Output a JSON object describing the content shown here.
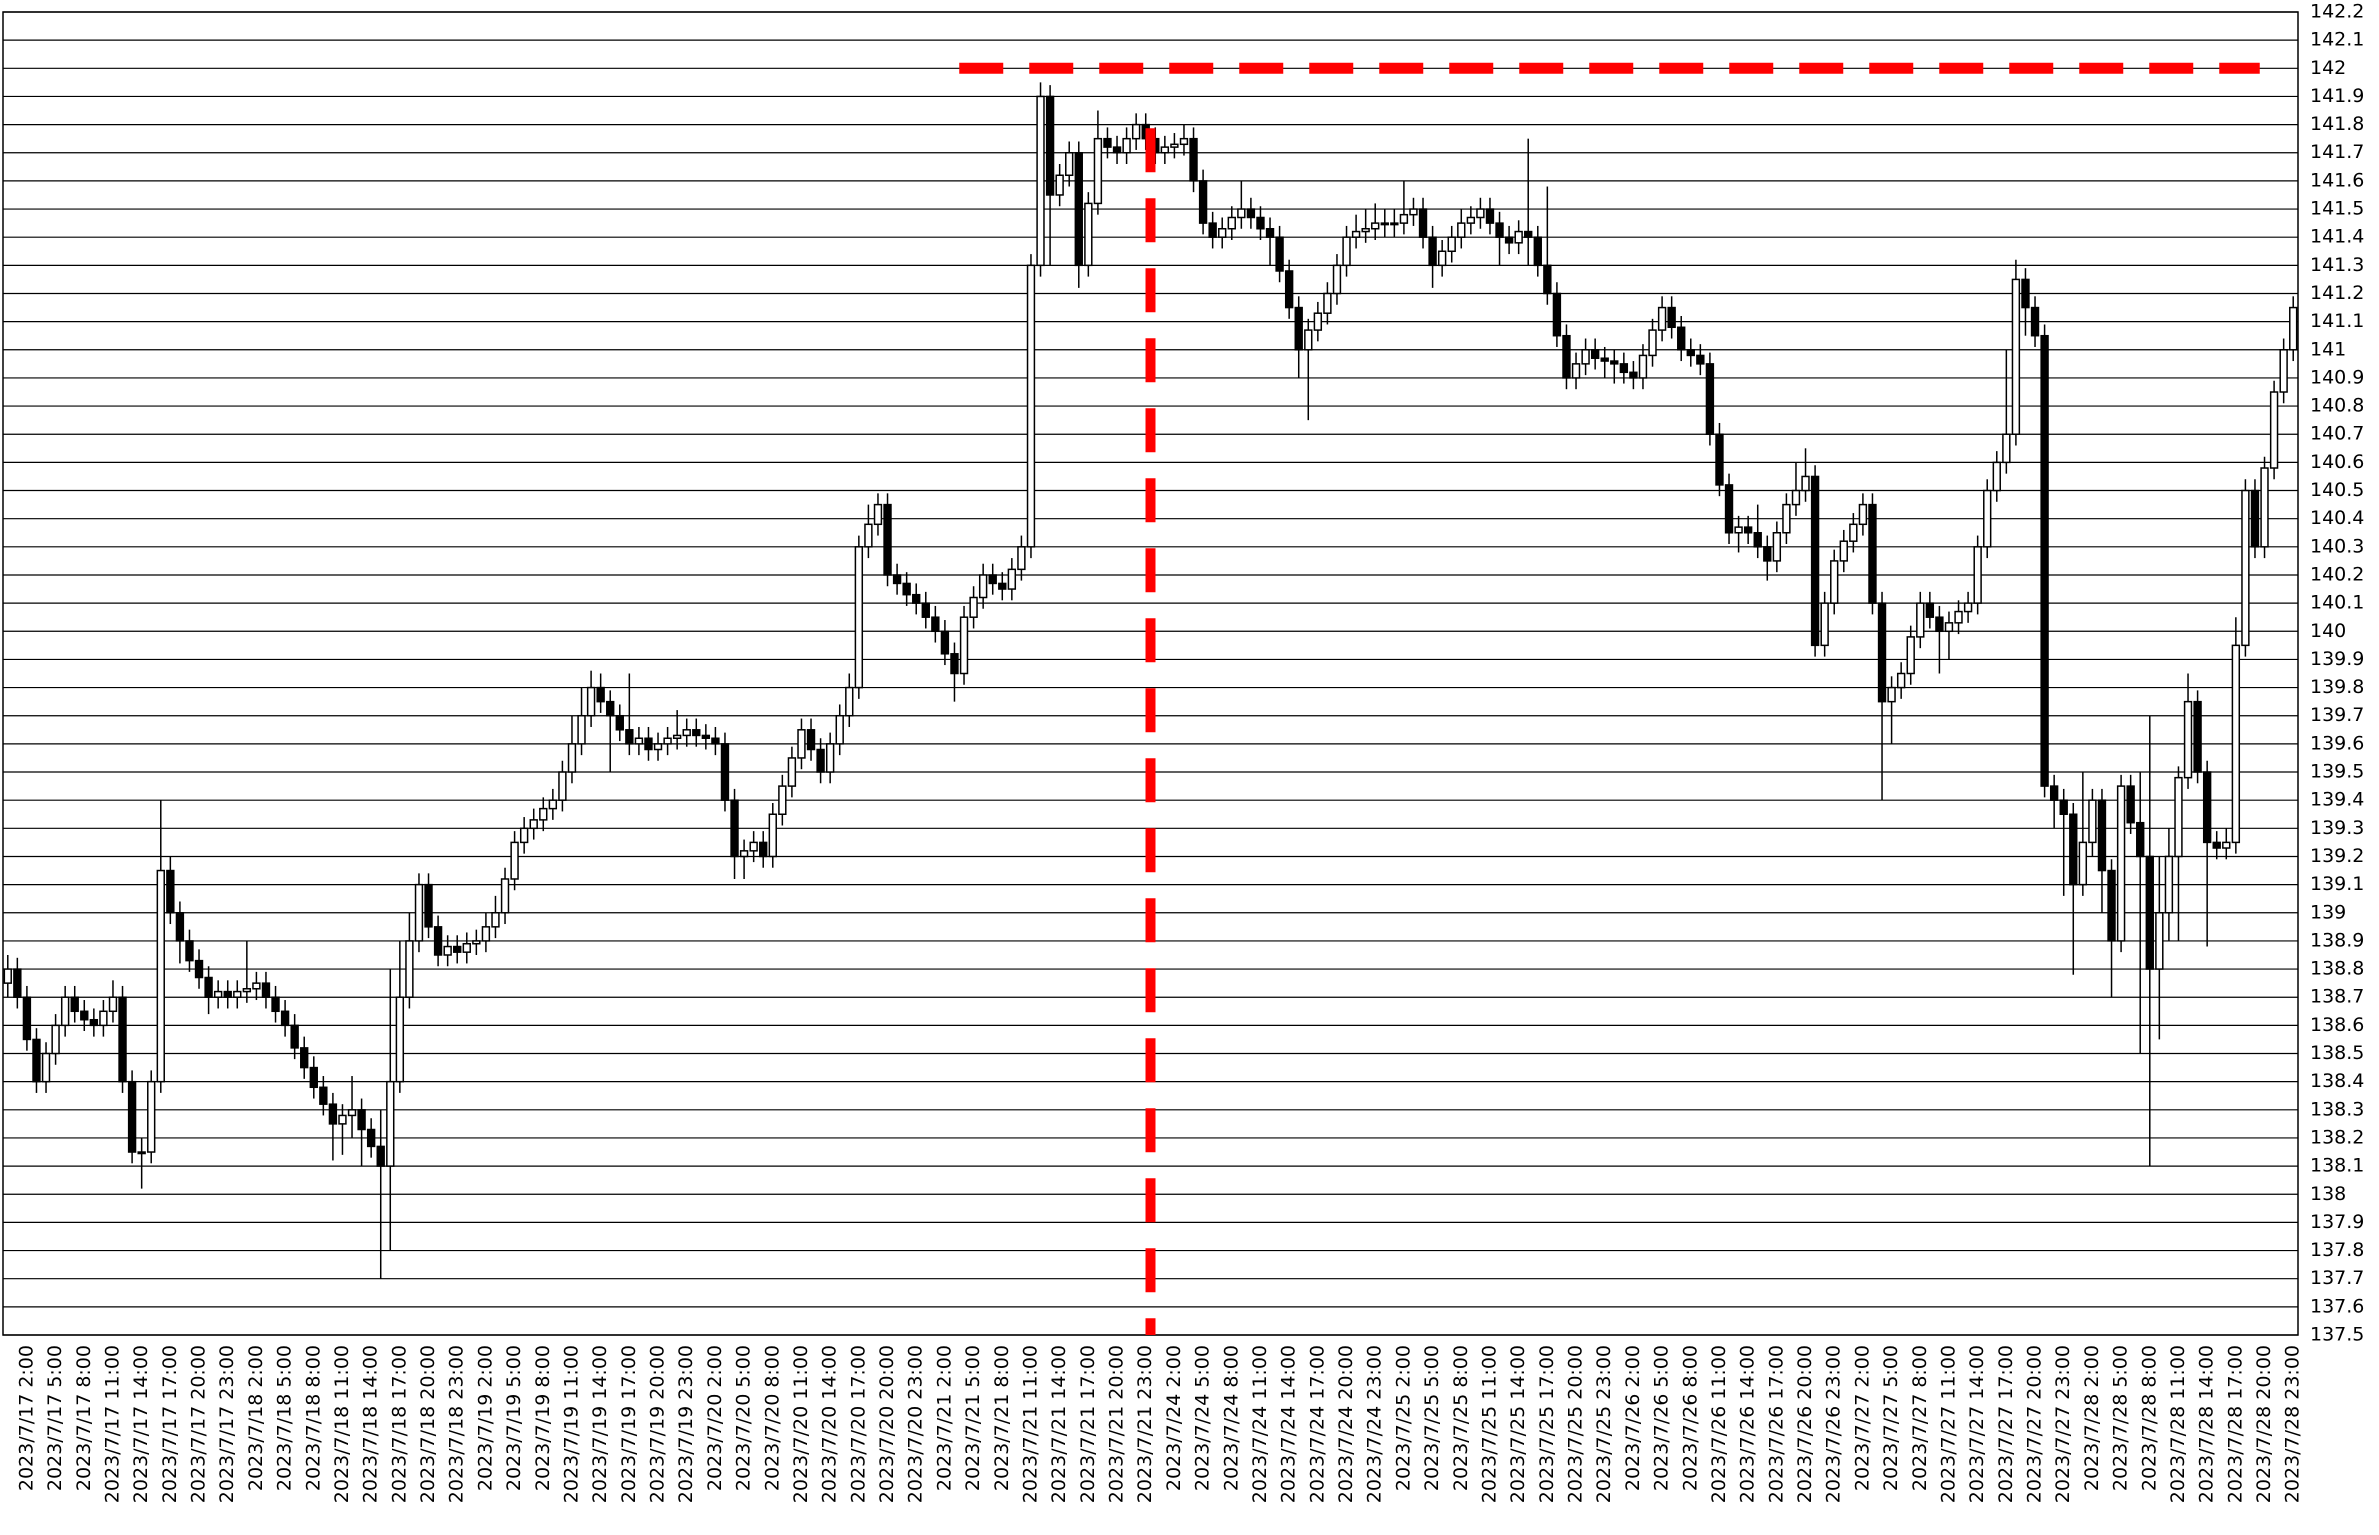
{
  "chart_data": {
    "type": "candlestick",
    "categories": [
      null,
      null,
      "2023/7/17 2:00",
      null,
      null,
      "2023/7/17 5:00",
      null,
      null,
      "2023/7/17 8:00",
      null,
      null,
      "2023/7/17 11:00",
      null,
      null,
      "2023/7/17 14:00",
      null,
      null,
      "2023/7/17 17:00",
      null,
      null,
      "2023/7/17 20:00",
      null,
      null,
      "2023/7/17 23:00",
      null,
      null,
      "2023/7/18 2:00",
      null,
      null,
      "2023/7/18 5:00",
      null,
      null,
      "2023/7/18 8:00",
      null,
      null,
      "2023/7/18 11:00",
      null,
      null,
      "2023/7/18 14:00",
      null,
      null,
      "2023/7/18 17:00",
      null,
      null,
      "2023/7/18 20:00",
      null,
      null,
      "2023/7/18 23:00",
      null,
      null,
      "2023/7/19 2:00",
      null,
      null,
      "2023/7/19 5:00",
      null,
      null,
      "2023/7/19 8:00",
      null,
      null,
      "2023/7/19 11:00",
      null,
      null,
      "2023/7/19 14:00",
      null,
      null,
      "2023/7/19 17:00",
      null,
      null,
      "2023/7/19 20:00",
      null,
      null,
      "2023/7/19 23:00",
      null,
      null,
      "2023/7/20 2:00",
      null,
      null,
      "2023/7/20 5:00",
      null,
      null,
      "2023/7/20 8:00",
      null,
      null,
      "2023/7/20 11:00",
      null,
      null,
      "2023/7/20 14:00",
      null,
      null,
      "2023/7/20 17:00",
      null,
      null,
      "2023/7/20 20:00",
      null,
      null,
      "2023/7/20 23:00",
      null,
      null,
      "2023/7/21 2:00",
      null,
      null,
      "2023/7/21 5:00",
      null,
      null,
      "2023/7/21 8:00",
      null,
      null,
      "2023/7/21 11:00",
      null,
      null,
      "2023/7/21 14:00",
      null,
      null,
      "2023/7/21 17:00",
      null,
      null,
      "2023/7/21 20:00",
      null,
      null,
      "2023/7/21 23:00",
      null,
      null,
      "2023/7/24 2:00",
      null,
      null,
      "2023/7/24 5:00",
      null,
      null,
      "2023/7/24 8:00",
      null,
      null,
      "2023/7/24 11:00",
      null,
      null,
      "2023/7/24 14:00",
      null,
      null,
      "2023/7/24 17:00",
      null,
      null,
      "2023/7/24 20:00",
      null,
      null,
      "2023/7/24 23:00",
      null,
      null,
      "2023/7/25 2:00",
      null,
      null,
      "2023/7/25 5:00",
      null,
      null,
      "2023/7/25 8:00",
      null,
      null,
      "2023/7/25 11:00",
      null,
      null,
      "2023/7/25 14:00",
      null,
      null,
      "2023/7/25 17:00",
      null,
      null,
      "2023/7/25 20:00",
      null,
      null,
      "2023/7/25 23:00",
      null,
      null,
      "2023/7/26 2:00",
      null,
      null,
      "2023/7/26 5:00",
      null,
      null,
      "2023/7/26 8:00",
      null,
      null,
      "2023/7/26 11:00",
      null,
      null,
      "2023/7/26 14:00",
      null,
      null,
      "2023/7/26 17:00",
      null,
      null,
      "2023/7/26 20:00",
      null,
      null,
      "2023/7/26 23:00",
      null,
      null,
      "2023/7/27 2:00",
      null,
      null,
      "2023/7/27 5:00",
      null,
      null,
      "2023/7/27 8:00",
      null,
      null,
      "2023/7/27 11:00",
      null,
      null,
      "2023/7/27 14:00",
      null,
      null,
      "2023/7/27 17:00",
      null,
      null,
      "2023/7/27 20:00",
      null,
      null,
      "2023/7/27 23:00",
      null,
      null,
      "2023/7/28 2:00",
      null,
      null,
      "2023/7/28 5:00",
      null,
      null,
      "2023/7/28 8:00",
      null,
      null,
      "2023/7/28 11:00",
      null,
      null,
      "2023/7/28 14:00",
      null,
      null,
      "2023/7/28 17:00",
      null,
      null,
      "2023/7/28 20:00",
      null,
      null,
      "2023/7/28 23:00"
    ],
    "open": [
      138.75,
      138.8,
      138.7,
      138.55,
      138.4,
      138.5,
      138.6,
      138.7,
      138.65,
      138.62,
      138.6,
      138.65,
      138.7,
      138.4,
      138.15,
      138.15,
      138.4,
      139.15,
      139.0,
      138.9,
      138.83,
      138.77,
      138.7,
      138.72,
      138.7,
      138.72,
      138.73,
      138.75,
      138.7,
      138.65,
      138.6,
      138.52,
      138.45,
      138.38,
      138.32,
      138.25,
      138.28,
      138.3,
      138.23,
      138.17,
      138.1,
      138.4,
      138.7,
      138.9,
      139.1,
      138.95,
      138.85,
      138.88,
      138.86,
      138.89,
      138.9,
      138.95,
      139.0,
      139.12,
      139.25,
      139.3,
      139.33,
      139.37,
      139.4,
      139.5,
      139.6,
      139.7,
      139.8,
      139.75,
      139.7,
      139.65,
      139.6,
      139.62,
      139.58,
      139.6,
      139.62,
      139.63,
      139.65,
      139.63,
      139.62,
      139.6,
      139.4,
      139.2,
      139.22,
      139.25,
      139.2,
      139.35,
      139.45,
      139.55,
      139.65,
      139.58,
      139.5,
      139.6,
      139.7,
      139.8,
      140.3,
      140.38,
      140.45,
      140.2,
      140.17,
      140.13,
      140.1,
      140.05,
      140.0,
      139.92,
      139.85,
      140.05,
      140.12,
      140.2,
      140.17,
      140.15,
      140.22,
      140.3,
      141.3,
      141.9,
      141.55,
      141.62,
      141.7,
      141.3,
      141.52,
      141.75,
      141.72,
      141.7,
      141.75,
      141.8,
      141.75,
      141.7,
      141.72,
      141.73,
      141.75,
      141.6,
      141.45,
      141.4,
      141.43,
      141.47,
      141.5,
      141.47,
      141.43,
      141.4,
      141.28,
      141.15,
      141.0,
      141.07,
      141.13,
      141.2,
      141.3,
      141.4,
      141.42,
      141.43,
      141.45,
      141.45,
      141.45,
      141.48,
      141.5,
      141.4,
      141.3,
      141.35,
      141.4,
      141.45,
      141.47,
      141.5,
      141.45,
      141.4,
      141.38,
      141.42,
      141.4,
      141.3,
      141.2,
      141.05,
      140.9,
      140.95,
      141.0,
      140.97,
      140.96,
      140.95,
      140.92,
      140.9,
      140.98,
      141.07,
      141.15,
      141.08,
      141.0,
      140.98,
      140.95,
      140.7,
      140.52,
      140.35,
      140.37,
      140.35,
      140.3,
      140.25,
      140.35,
      140.45,
      140.5,
      140.55,
      139.95,
      140.1,
      140.25,
      140.32,
      140.38,
      140.45,
      140.1,
      139.75,
      139.8,
      139.85,
      139.98,
      140.1,
      140.05,
      140.0,
      140.03,
      140.07,
      140.1,
      140.3,
      140.5,
      140.6,
      140.7,
      141.25,
      141.15,
      141.05,
      139.45,
      139.4,
      139.35,
      139.1,
      139.25,
      139.4,
      139.15,
      138.9,
      139.45,
      139.32,
      139.2,
      138.8,
      139.0,
      139.2,
      139.48,
      139.75,
      139.5,
      139.25,
      139.23,
      139.25,
      139.95,
      140.5,
      140.3,
      140.58,
      140.85,
      141.0
    ],
    "high": [
      138.85,
      138.84,
      138.74,
      138.59,
      138.54,
      138.64,
      138.74,
      138.74,
      138.69,
      138.66,
      138.69,
      138.76,
      138.74,
      138.44,
      138.2,
      138.44,
      139.4,
      139.2,
      139.04,
      138.94,
      138.87,
      138.81,
      138.76,
      138.76,
      138.76,
      138.9,
      138.79,
      138.79,
      138.74,
      138.69,
      138.64,
      138.56,
      138.49,
      138.42,
      138.36,
      138.32,
      138.42,
      138.34,
      138.27,
      138.3,
      138.8,
      138.9,
      139.0,
      139.14,
      139.14,
      138.99,
      138.92,
      138.92,
      138.93,
      138.94,
      139.0,
      139.06,
      139.16,
      139.29,
      139.34,
      139.37,
      139.41,
      139.44,
      139.54,
      139.7,
      139.8,
      139.86,
      139.85,
      139.79,
      139.74,
      139.85,
      139.66,
      139.66,
      139.64,
      139.66,
      139.72,
      139.69,
      139.69,
      139.67,
      139.66,
      139.64,
      139.44,
      139.26,
      139.29,
      139.29,
      139.39,
      139.49,
      139.59,
      139.69,
      139.69,
      139.62,
      139.64,
      139.74,
      139.85,
      140.34,
      140.45,
      140.49,
      140.49,
      140.24,
      140.21,
      140.17,
      140.14,
      140.09,
      140.04,
      139.96,
      140.09,
      140.16,
      140.24,
      140.24,
      140.21,
      140.26,
      140.34,
      141.34,
      141.95,
      141.94,
      141.66,
      141.74,
      141.74,
      141.56,
      141.85,
      141.79,
      141.76,
      141.79,
      141.84,
      141.84,
      141.79,
      141.76,
      141.77,
      141.8,
      141.79,
      141.64,
      141.49,
      141.47,
      141.51,
      141.6,
      141.54,
      141.51,
      141.47,
      141.44,
      141.32,
      141.19,
      141.11,
      141.17,
      141.24,
      141.34,
      141.44,
      141.48,
      141.5,
      141.52,
      141.5,
      141.5,
      141.6,
      141.54,
      141.54,
      141.44,
      141.39,
      141.44,
      141.5,
      141.51,
      141.54,
      141.54,
      141.49,
      141.44,
      141.46,
      141.75,
      141.44,
      141.58,
      141.24,
      141.09,
      140.99,
      141.04,
      141.04,
      141.01,
      141.0,
      140.99,
      140.96,
      141.02,
      141.11,
      141.19,
      141.19,
      141.12,
      141.04,
      141.02,
      140.99,
      140.74,
      140.56,
      140.41,
      140.41,
      140.45,
      140.34,
      140.39,
      140.49,
      140.6,
      140.65,
      140.59,
      140.14,
      140.29,
      140.36,
      140.42,
      140.49,
      140.49,
      140.14,
      139.84,
      139.89,
      140.02,
      140.14,
      140.14,
      140.09,
      140.07,
      140.11,
      140.14,
      140.34,
      140.54,
      140.64,
      141.0,
      141.32,
      141.29,
      141.19,
      141.09,
      139.49,
      139.44,
      139.39,
      139.5,
      139.44,
      139.44,
      139.19,
      139.49,
      139.49,
      139.5,
      139.7,
      139.2,
      139.3,
      139.52,
      139.85,
      139.79,
      139.54,
      139.29,
      139.3,
      140.05,
      140.54,
      140.54,
      140.62,
      140.89,
      141.04,
      141.19
    ],
    "low": [
      138.7,
      138.66,
      138.51,
      138.36,
      138.36,
      138.46,
      138.56,
      138.61,
      138.58,
      138.56,
      138.56,
      138.61,
      138.36,
      138.11,
      138.02,
      138.11,
      138.36,
      138.96,
      138.82,
      138.79,
      138.73,
      138.64,
      138.66,
      138.66,
      138.66,
      138.68,
      138.69,
      138.66,
      138.61,
      138.56,
      138.48,
      138.41,
      138.34,
      138.28,
      138.12,
      138.14,
      138.2,
      138.1,
      138.13,
      137.7,
      137.8,
      138.36,
      138.66,
      138.86,
      138.91,
      138.81,
      138.81,
      138.82,
      138.82,
      138.85,
      138.86,
      138.91,
      138.96,
      139.08,
      139.21,
      139.26,
      139.29,
      139.33,
      139.36,
      139.46,
      139.56,
      139.66,
      139.71,
      139.5,
      139.61,
      139.56,
      139.56,
      139.54,
      139.54,
      139.56,
      139.58,
      139.59,
      139.59,
      139.58,
      139.56,
      139.36,
      139.12,
      139.12,
      139.18,
      139.16,
      139.16,
      139.31,
      139.41,
      139.51,
      139.54,
      139.46,
      139.46,
      139.56,
      139.66,
      139.76,
      140.26,
      140.34,
      140.16,
      140.13,
      140.09,
      140.06,
      140.01,
      139.96,
      139.88,
      139.75,
      139.81,
      140.01,
      140.08,
      140.13,
      140.11,
      140.11,
      140.18,
      140.26,
      141.26,
      141.3,
      141.51,
      141.58,
      141.22,
      141.26,
      141.48,
      141.68,
      141.66,
      141.66,
      141.71,
      141.71,
      141.66,
      141.66,
      141.68,
      141.69,
      141.56,
      141.41,
      141.36,
      141.36,
      141.39,
      141.43,
      141.43,
      141.39,
      141.3,
      141.24,
      141.11,
      140.9,
      140.75,
      141.03,
      141.09,
      141.16,
      141.26,
      141.36,
      141.38,
      141.39,
      141.4,
      141.4,
      141.41,
      141.44,
      141.36,
      141.22,
      141.26,
      141.31,
      141.36,
      141.41,
      141.43,
      141.41,
      141.3,
      141.34,
      141.34,
      141.3,
      141.26,
      141.16,
      141.01,
      140.86,
      140.86,
      140.91,
      140.93,
      140.9,
      140.88,
      140.88,
      140.86,
      140.86,
      140.94,
      141.03,
      141.04,
      140.96,
      140.94,
      140.91,
      140.66,
      140.48,
      140.31,
      140.28,
      140.31,
      140.26,
      140.18,
      140.21,
      140.31,
      140.41,
      140.46,
      139.91,
      139.91,
      140.06,
      140.21,
      140.28,
      140.34,
      140.06,
      139.4,
      139.6,
      139.76,
      139.81,
      139.94,
      140.01,
      139.85,
      139.9,
      139.99,
      140.03,
      140.06,
      140.26,
      140.46,
      140.56,
      140.66,
      141.05,
      141.01,
      139.41,
      139.3,
      139.06,
      138.78,
      139.06,
      139.2,
      139.0,
      138.7,
      138.86,
      139.28,
      138.5,
      138.1,
      138.55,
      138.9,
      138.9,
      139.44,
      139.46,
      138.88,
      139.19,
      139.19,
      139.21,
      139.91,
      140.26,
      140.26,
      140.54,
      140.81,
      140.96
    ],
    "close": [
      138.8,
      138.7,
      138.55,
      138.4,
      138.5,
      138.6,
      138.7,
      138.65,
      138.62,
      138.6,
      138.65,
      138.7,
      138.4,
      138.15,
      138.15,
      138.4,
      139.15,
      139.0,
      138.9,
      138.83,
      138.77,
      138.7,
      138.72,
      138.7,
      138.72,
      138.73,
      138.75,
      138.7,
      138.65,
      138.6,
      138.52,
      138.45,
      138.38,
      138.32,
      138.25,
      138.28,
      138.3,
      138.23,
      138.17,
      138.1,
      138.4,
      138.7,
      138.9,
      139.1,
      138.95,
      138.85,
      138.88,
      138.86,
      138.89,
      138.9,
      138.95,
      139.0,
      139.12,
      139.25,
      139.3,
      139.33,
      139.37,
      139.4,
      139.5,
      139.6,
      139.7,
      139.8,
      139.75,
      139.7,
      139.65,
      139.6,
      139.62,
      139.58,
      139.6,
      139.62,
      139.63,
      139.65,
      139.63,
      139.62,
      139.6,
      139.4,
      139.2,
      139.22,
      139.25,
      139.2,
      139.35,
      139.45,
      139.55,
      139.65,
      139.58,
      139.5,
      139.6,
      139.7,
      139.8,
      140.3,
      140.38,
      140.45,
      140.2,
      140.17,
      140.13,
      140.1,
      140.05,
      140.0,
      139.92,
      139.85,
      140.05,
      140.12,
      140.2,
      140.17,
      140.15,
      140.22,
      140.3,
      141.3,
      141.9,
      141.55,
      141.62,
      141.7,
      141.3,
      141.52,
      141.75,
      141.72,
      141.7,
      141.75,
      141.8,
      141.75,
      141.7,
      141.72,
      141.73,
      141.75,
      141.6,
      141.45,
      141.4,
      141.43,
      141.47,
      141.5,
      141.47,
      141.43,
      141.4,
      141.28,
      141.15,
      141.0,
      141.07,
      141.13,
      141.2,
      141.3,
      141.4,
      141.42,
      141.43,
      141.45,
      141.45,
      141.45,
      141.48,
      141.5,
      141.4,
      141.3,
      141.35,
      141.4,
      141.45,
      141.47,
      141.5,
      141.45,
      141.4,
      141.38,
      141.42,
      141.4,
      141.3,
      141.2,
      141.05,
      140.9,
      140.95,
      141.0,
      140.97,
      140.96,
      140.95,
      140.92,
      140.9,
      140.98,
      141.07,
      141.15,
      141.08,
      141.0,
      140.98,
      140.95,
      140.7,
      140.52,
      140.35,
      140.37,
      140.35,
      140.3,
      140.25,
      140.35,
      140.45,
      140.5,
      140.55,
      139.95,
      140.1,
      140.25,
      140.32,
      140.38,
      140.45,
      140.1,
      139.75,
      139.8,
      139.85,
      139.98,
      140.1,
      140.05,
      140.0,
      140.03,
      140.07,
      140.1,
      140.3,
      140.5,
      140.6,
      140.7,
      141.25,
      141.15,
      141.05,
      139.45,
      139.4,
      139.35,
      139.1,
      139.25,
      139.4,
      139.15,
      138.9,
      139.45,
      139.32,
      139.2,
      138.8,
      139.0,
      139.2,
      139.48,
      139.75,
      139.5,
      139.25,
      139.23,
      139.25,
      139.95,
      140.5,
      140.3,
      140.58,
      140.85,
      141.0,
      141.15
    ],
    "up_color": "#ffffff",
    "down_color": "#000000",
    "outline_color": "#000000",
    "ylim": [
      137.5,
      142.2
    ],
    "yticks": [
      137.5,
      137.6,
      137.7,
      137.8,
      137.9,
      138,
      138.1,
      138.2,
      138.3,
      138.4,
      138.5,
      138.6,
      138.7,
      138.8,
      138.9,
      139,
      139.1,
      139.2,
      139.3,
      139.4,
      139.5,
      139.6,
      139.7,
      139.8,
      139.9,
      140,
      140.1,
      140.2,
      140.3,
      140.4,
      140.5,
      140.6,
      140.7,
      140.8,
      140.9,
      141,
      141.1,
      141.2,
      141.3,
      141.4,
      141.5,
      141.6,
      141.7,
      141.8,
      141.9,
      142,
      142.1,
      142.2
    ],
    "grid": true,
    "hline": {
      "value": 142,
      "from_index": 100,
      "to_index": 236,
      "color": "#ff0000"
    },
    "vline": {
      "index": 120,
      "color": "#ff0000"
    }
  }
}
